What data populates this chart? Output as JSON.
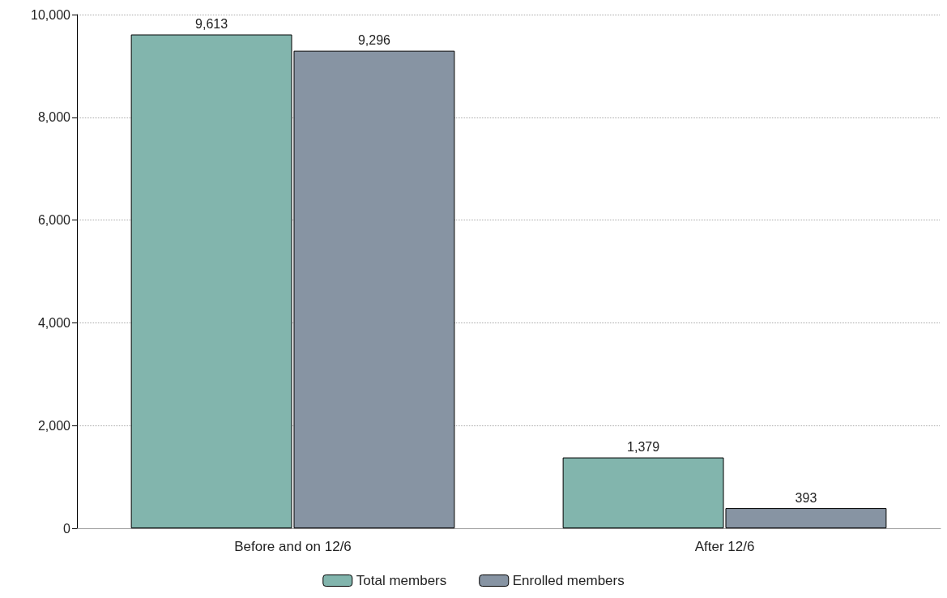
{
  "chart_data": {
    "type": "bar",
    "categories": [
      "Before and on 12/6",
      "After 12/6"
    ],
    "series": [
      {
        "name": "Total members",
        "color": "#82b5ad",
        "values": [
          9613,
          1379
        ],
        "value_labels": [
          "9,613",
          "1,379"
        ]
      },
      {
        "name": "Enrolled members",
        "color": "#8794a3",
        "values": [
          9296,
          393
        ],
        "value_labels": [
          "9,296",
          "393"
        ]
      }
    ],
    "ylim": [
      0,
      10000
    ],
    "yticks": [
      {
        "value": 0,
        "label": "0"
      },
      {
        "value": 2000,
        "label": "2,000"
      },
      {
        "value": 4000,
        "label": "4,000"
      },
      {
        "value": 6000,
        "label": "6,000"
      },
      {
        "value": 8000,
        "label": "8,000"
      },
      {
        "value": 10000,
        "label": "10,000"
      }
    ],
    "grid": "y",
    "legend": "bottom"
  }
}
